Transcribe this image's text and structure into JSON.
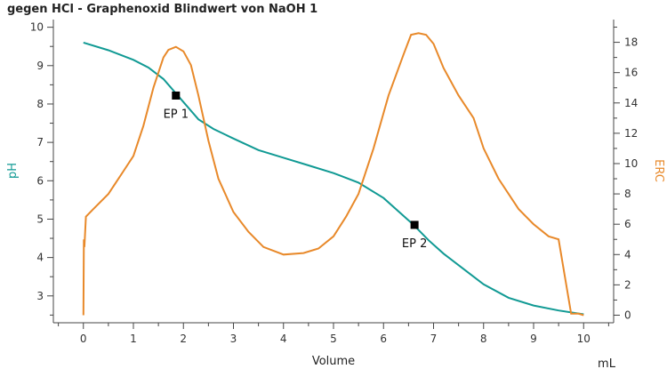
{
  "chart_data": {
    "type": "line",
    "title": "gegen HCl - Graphenoxid Blindwert von NaOH  1",
    "xlabel": "Volume",
    "xunit": "mL",
    "ylabel_left": "pH",
    "ylabel_right": "ERC",
    "xlim": [
      -0.6,
      10.6
    ],
    "ylim_left": [
      2.3,
      10.2
    ],
    "ylim_right": [
      -0.5,
      19.5
    ],
    "x_ticks": [
      0,
      1,
      2,
      3,
      4,
      5,
      6,
      7,
      8,
      9,
      10
    ],
    "y_left_ticks": [
      3,
      4,
      5,
      6,
      7,
      8,
      9,
      10
    ],
    "y_right_ticks": [
      0,
      2,
      4,
      6,
      8,
      10,
      12,
      14,
      16,
      18
    ],
    "colors": {
      "ph": "#119a94",
      "erc": "#e8892a",
      "axis": "#444444",
      "marker": "#000000"
    },
    "series": [
      {
        "name": "pH",
        "axis": "left",
        "x": [
          0,
          0.5,
          1.0,
          1.3,
          1.6,
          2.0,
          2.3,
          2.6,
          3.0,
          3.5,
          4.0,
          4.5,
          5.0,
          5.5,
          6.0,
          6.3,
          6.6,
          6.9,
          7.2,
          7.6,
          8.0,
          8.5,
          9.0,
          9.5,
          10.0
        ],
        "values": [
          9.6,
          9.4,
          9.15,
          8.95,
          8.65,
          8.05,
          7.6,
          7.35,
          7.1,
          6.8,
          6.6,
          6.4,
          6.2,
          5.95,
          5.55,
          5.2,
          4.85,
          4.45,
          4.1,
          3.7,
          3.3,
          2.95,
          2.75,
          2.62,
          2.52
        ]
      },
      {
        "name": "ERC",
        "axis": "right",
        "x": [
          0,
          0.01,
          0.02,
          0.05,
          0.2,
          0.5,
          0.8,
          1.0,
          1.2,
          1.4,
          1.6,
          1.7,
          1.85,
          2.0,
          2.15,
          2.3,
          2.5,
          2.7,
          3.0,
          3.3,
          3.6,
          4.0,
          4.4,
          4.7,
          5.0,
          5.25,
          5.5,
          5.8,
          6.1,
          6.4,
          6.55,
          6.7,
          6.85,
          7.0,
          7.2,
          7.5,
          7.8,
          8.0,
          8.3,
          8.7,
          9.0,
          9.3,
          9.5,
          9.75,
          9.9,
          10.0
        ],
        "values": [
          0,
          5,
          4.5,
          6.5,
          7.0,
          8.0,
          9.5,
          10.5,
          12.5,
          15.0,
          17.0,
          17.5,
          17.7,
          17.4,
          16.5,
          14.5,
          11.5,
          9.0,
          6.8,
          5.5,
          4.5,
          4.0,
          4.1,
          4.4,
          5.2,
          6.5,
          8.0,
          11.0,
          14.5,
          17.2,
          18.5,
          18.6,
          18.5,
          17.9,
          16.3,
          14.5,
          13.0,
          11.0,
          9.0,
          7.0,
          6.0,
          5.2,
          5.0,
          0.1,
          0.1,
          0.0
        ]
      }
    ],
    "endpoints": [
      {
        "label": "EP 1",
        "x": 1.85,
        "ph": 8.22
      },
      {
        "label": "EP 2",
        "x": 6.62,
        "ph": 4.85
      }
    ]
  }
}
